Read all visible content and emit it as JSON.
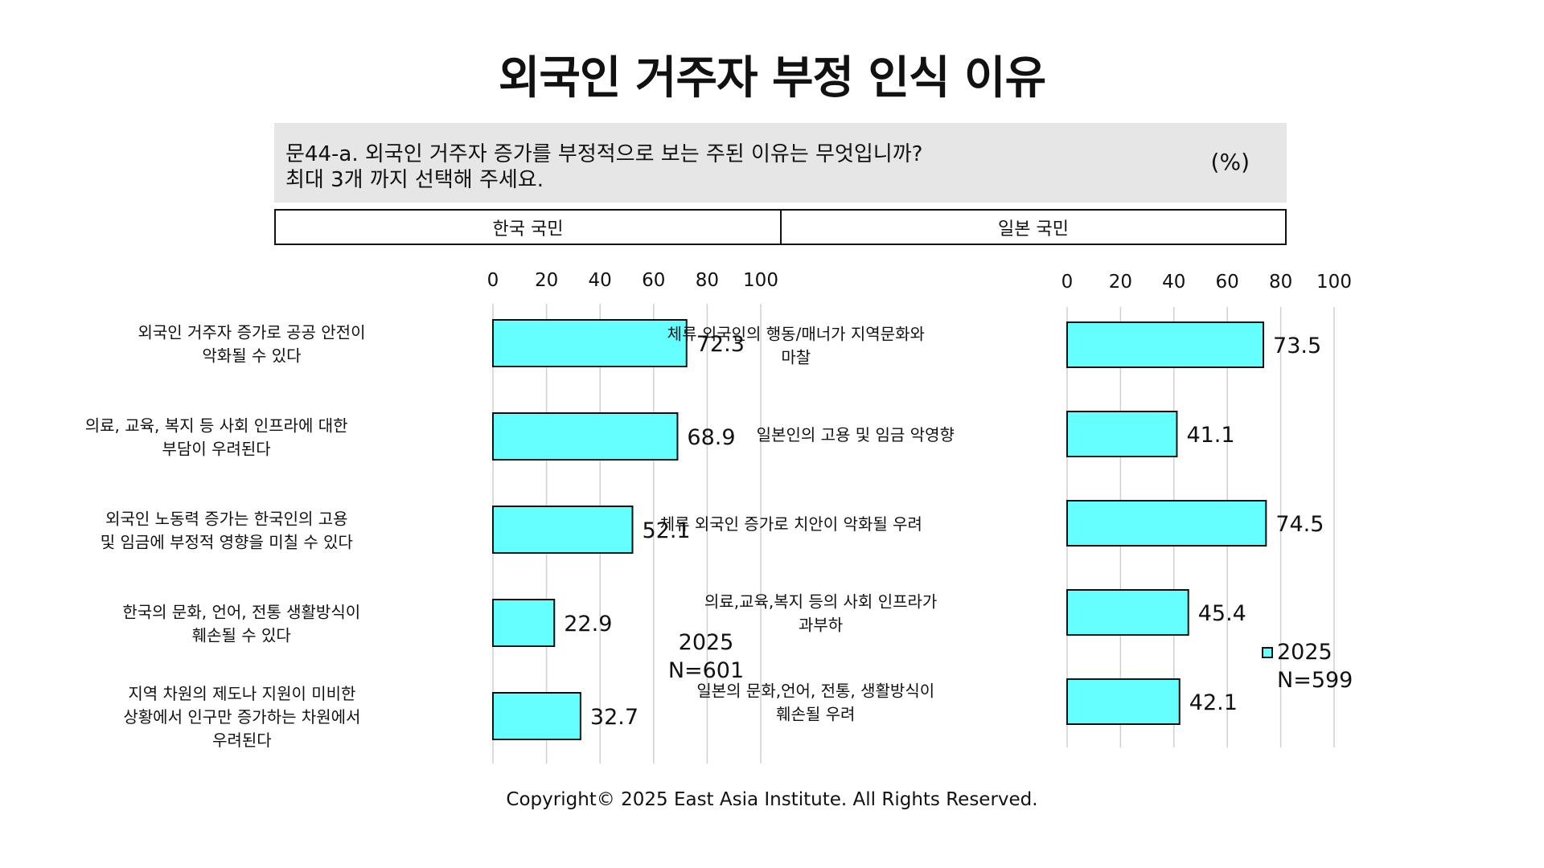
{
  "title": "외국인 거주자 부정 인식 이유",
  "question": {
    "line1": "문44-a. 외국인 거주자 증가를 부정적으로 보는 주된 이유는 무엇입니까?",
    "line2": "최대 3개 까지 선택해 주세요.",
    "unit": "(%)"
  },
  "groups": {
    "left": "한국 국민",
    "right": "일본 국민"
  },
  "colors": {
    "bar": "#66ffff",
    "bar_stroke": "#111111",
    "grid": "#d0d0d0"
  },
  "chart_data": [
    {
      "type": "bar",
      "orientation": "horizontal",
      "group": "한국 국민",
      "xlim": [
        0,
        100
      ],
      "ticks": [
        "0",
        "20",
        "40",
        "60",
        "80",
        "100"
      ],
      "grid": true,
      "series_label": "2025",
      "sample": "N=601",
      "categories": [
        [
          "외국인 거주자 증가로 공공 안전이",
          "악화될 수 있다"
        ],
        [
          "의료, 교육, 복지 등 사회 인프라에 대한",
          "부담이 우려된다"
        ],
        [
          "외국인 노동력 증가는 한국인의 고용",
          "및 임금에 부정적 영향을 미칠 수 있다"
        ],
        [
          "한국의 문화, 언어, 전통 생활방식이",
          "훼손될 수 있다"
        ],
        [
          "지역 차원의 제도나 지원이 미비한",
          "상황에서 인구만 증가하는 차원에서",
          "우려된다"
        ]
      ],
      "values": [
        72.3,
        68.9,
        52.1,
        22.9,
        32.7
      ],
      "labels": [
        "72.3",
        "68.9",
        "52.1",
        "22.9",
        "32.7"
      ]
    },
    {
      "type": "bar",
      "orientation": "horizontal",
      "group": "일본 국민",
      "xlim": [
        0,
        100
      ],
      "ticks": [
        "0",
        "20",
        "40",
        "60",
        "80",
        "100"
      ],
      "grid": true,
      "series_label": "2025",
      "sample": "N=599",
      "legend": "right",
      "categories": [
        [
          "체류 외국인의 행동/매너가 지역문화와",
          "마찰"
        ],
        [
          "일본인의 고용 및 임금 악영향"
        ],
        [
          "체류 외국인 증가로 치안이 악화될 우려"
        ],
        [
          "의료,교육,복지 등의 사회 인프라가",
          "과부하"
        ],
        [
          "일본의 문화,언어, 전통, 생활방식이",
          "훼손될 우려"
        ]
      ],
      "values": [
        73.5,
        41.1,
        74.5,
        45.4,
        42.1
      ],
      "labels": [
        "73.5",
        "41.1",
        "74.5",
        "45.4",
        "42.1"
      ]
    }
  ],
  "footer": "Copyright© 2025 East Asia Institute. All Rights Reserved."
}
